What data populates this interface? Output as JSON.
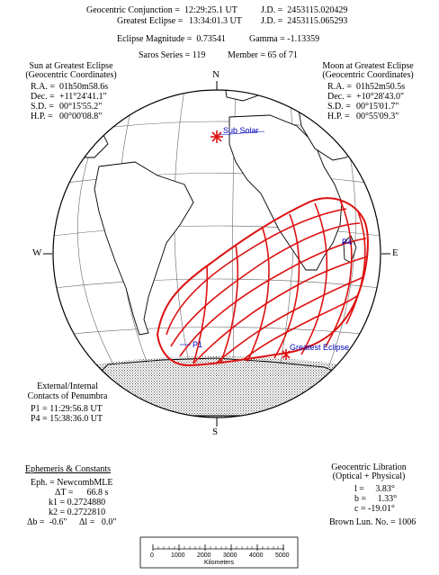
{
  "header": {
    "conj_label": "Geocentric Conjunction =",
    "conj_time": "12:29:25.1 UT",
    "conj_jd": "J.D. =  2453115.020429",
    "ge_label": "Greatest Eclipse =",
    "ge_time": "13:34:01.3 UT",
    "ge_jd": "J.D. =  2453115.065293",
    "magnitude": "Eclipse Magnitude =  0.73541",
    "gamma": "Gamma = -1.13359",
    "saros": "Saros Series = 119",
    "member": "Member = 65 of 71"
  },
  "sun": {
    "title1": "Sun at Greatest Eclipse",
    "title2": "(Geocentric Coordinates)",
    "rows": [
      {
        "label": "R.A. =",
        "value": "01h50m58.6s"
      },
      {
        "label": "Dec. =",
        "value": "+11°24'41.1\""
      },
      {
        "label": "S.D. =",
        "value": "00°15'55.2\""
      },
      {
        "label": "H.P. =",
        "value": "00°00'08.8\""
      }
    ]
  },
  "moon": {
    "title1": "Moon at Greatest Eclipse",
    "title2": "(Geocentric Coordinates)",
    "rows": [
      {
        "label": "R.A. =",
        "value": "01h52m50.5s"
      },
      {
        "label": "Dec. =",
        "value": "+10°28'43.0\""
      },
      {
        "label": "S.D. =",
        "value": "00°15'01.7\""
      },
      {
        "label": "H.P. =",
        "value": "00°55'09.3\""
      }
    ]
  },
  "compass": {
    "n": "N",
    "s": "S",
    "e": "E",
    "w": "W"
  },
  "map_labels": {
    "sub_solar": "Sub Solar",
    "p1": "P1",
    "p4": "P4",
    "greatest": "Greatest Eclipse"
  },
  "contacts": {
    "title1": "External/Internal",
    "title2": "Contacts of Penumbra",
    "p1": "P1 = 11:29:56.8 UT",
    "p4": "P4 = 15:38:36.0 UT"
  },
  "ephemeris": {
    "title": "Ephemeris & Constants",
    "eph": "Eph. = NewcombMLE",
    "dt": "ΔT =      66.8 s",
    "k1": "k1 = 0.2724880",
    "k2": "k2 = 0.2722810",
    "db": "Δb =  -0.6\"",
    "dl": "Δl =   0.0\""
  },
  "libration": {
    "title1": "Geocentric Libration",
    "title2": "(Optical + Physical)",
    "l": "l =     3.83°",
    "b": "b =     1.33°",
    "c": "c = -19.01°",
    "brown": "Brown Lun. No. = 1006"
  },
  "scale": {
    "ticks": [
      "0",
      "1000",
      "2000",
      "3000",
      "4000",
      "5000"
    ],
    "unit": "Kilometers"
  },
  "colors": {
    "path": "#dd1111",
    "label": "#0000bb",
    "grid": "#555555"
  }
}
